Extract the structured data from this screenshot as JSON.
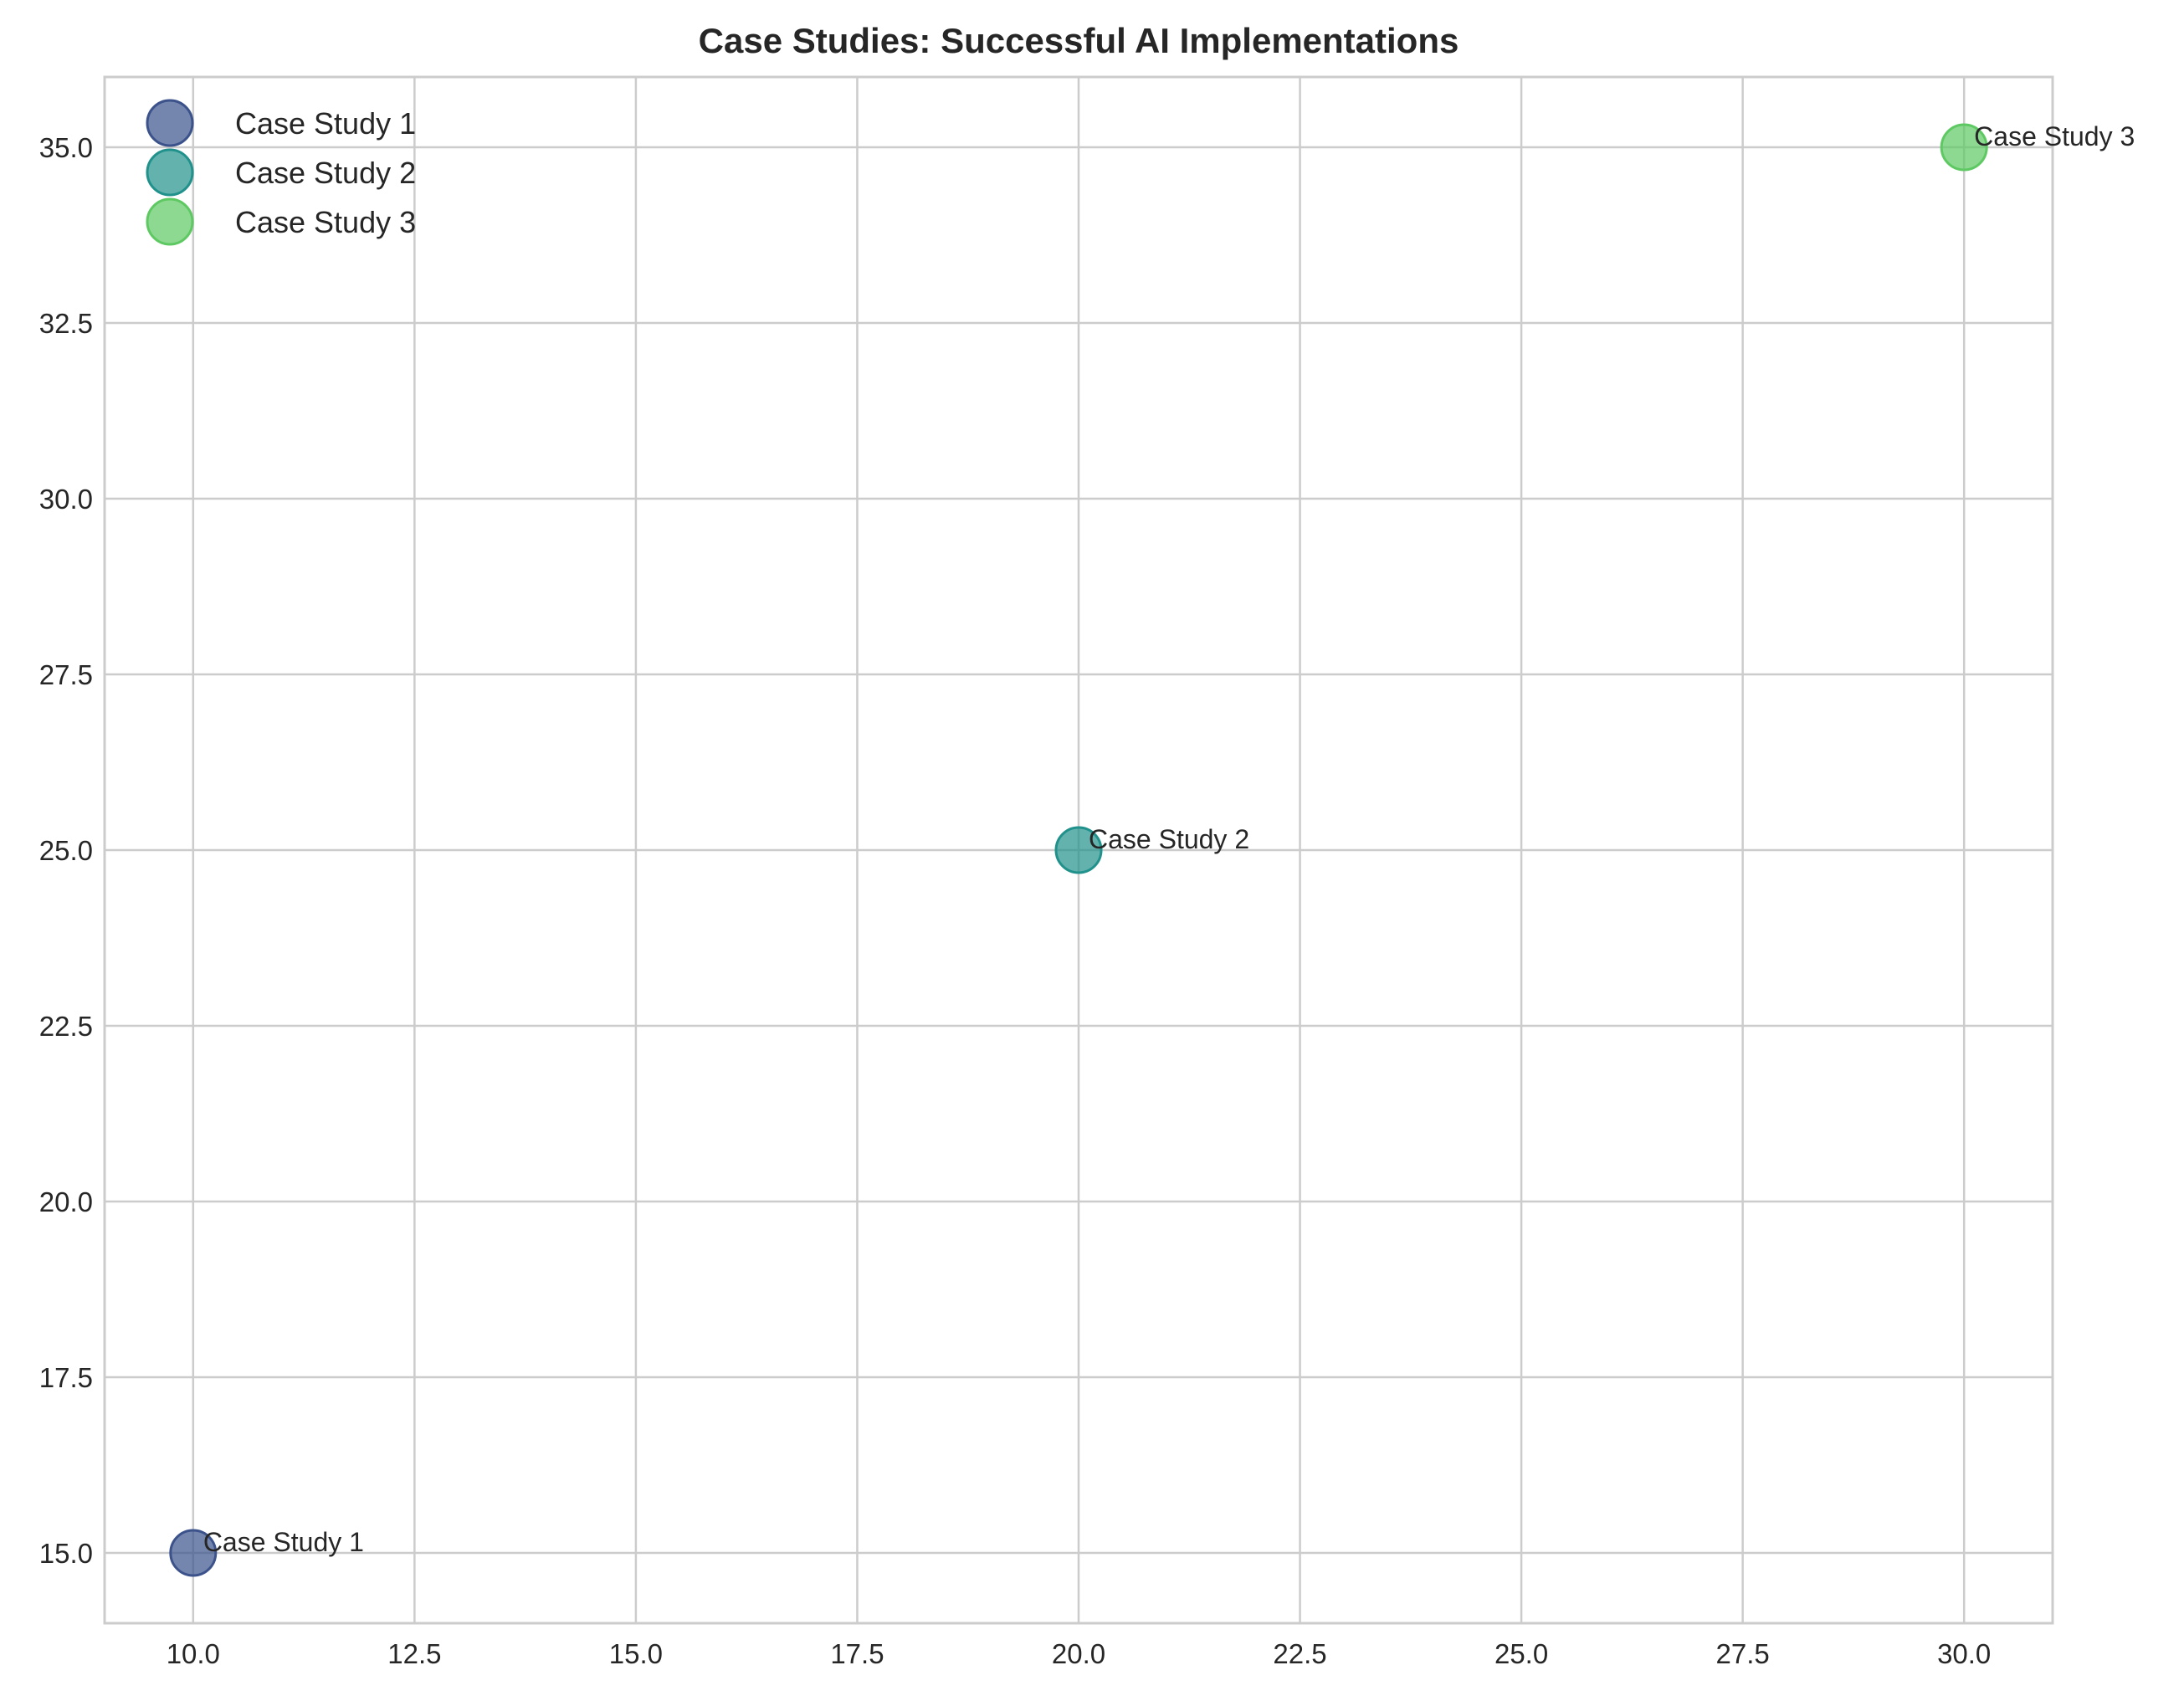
{
  "chart_data": {
    "type": "scatter",
    "title": "Case Studies: Successful AI Implementations",
    "xlabel": "",
    "ylabel": "",
    "xlim": [
      9,
      31
    ],
    "ylim": [
      14,
      36
    ],
    "xticks": [
      10.0,
      12.5,
      15.0,
      17.5,
      20.0,
      22.5,
      25.0,
      27.5,
      30.0
    ],
    "yticks": [
      15.0,
      17.5,
      20.0,
      22.5,
      25.0,
      27.5,
      30.0,
      32.5,
      35.0
    ],
    "xtick_labels": [
      "10.0",
      "12.5",
      "15.0",
      "17.5",
      "20.0",
      "22.5",
      "25.0",
      "27.5",
      "30.0"
    ],
    "ytick_labels": [
      "15.0",
      "17.5",
      "20.0",
      "22.5",
      "25.0",
      "27.5",
      "30.0",
      "32.5",
      "35.0"
    ],
    "grid": true,
    "legend_position": "top-left",
    "series": [
      {
        "name": "Case Study 1",
        "x": [
          10
        ],
        "y": [
          15
        ],
        "color": "#3b528b",
        "annotation": "Case Study 1"
      },
      {
        "name": "Case Study 2",
        "x": [
          20
        ],
        "y": [
          25
        ],
        "color": "#21918c",
        "annotation": "Case Study 2"
      },
      {
        "name": "Case Study 3",
        "x": [
          30
        ],
        "y": [
          35
        ],
        "color": "#5ec962",
        "annotation": "Case Study 3"
      }
    ]
  }
}
